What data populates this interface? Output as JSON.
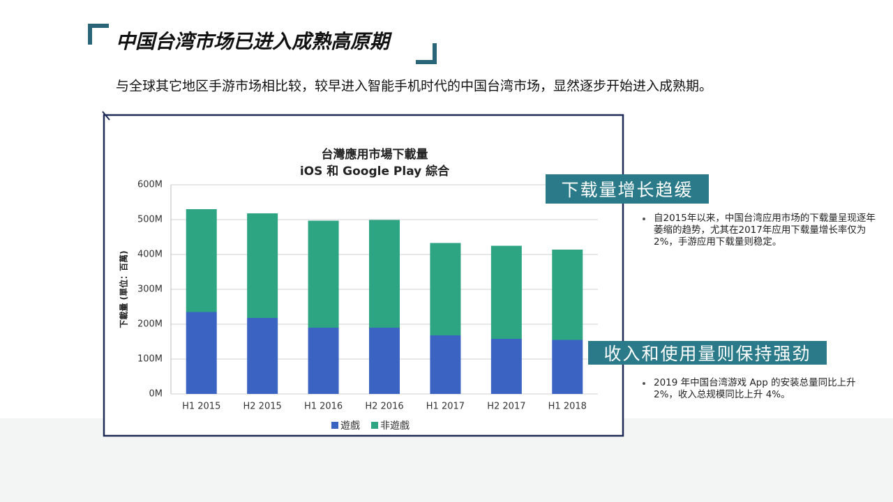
{
  "header": {
    "title": "中国台湾市场已进入成熟高原期",
    "subtitle": "与全球其它地区手游市场相比较，较早进入智能手机时代的中国台湾市场，显然逐步开始进入成熟期。"
  },
  "chart_data": {
    "type": "stacked_bar",
    "title": "台灣應用市場下載量",
    "subtitle": "iOS 和 Google Play 綜合",
    "y_label": "下載量 (單位：百萬)",
    "categories": [
      "H1 2015",
      "H2 2015",
      "H1 2016",
      "H2 2016",
      "H1 2017",
      "H2 2017",
      "H1 2018"
    ],
    "series": [
      {
        "name": "遊戲",
        "color": "#3a63c2",
        "values": [
          235,
          218,
          190,
          190,
          168,
          158,
          155
        ]
      },
      {
        "name": "非遊戲",
        "color": "#2ea582",
        "values": [
          295,
          300,
          307,
          309,
          265,
          267,
          259
        ]
      }
    ],
    "ylim": [
      0,
      600
    ],
    "yticks": [
      {
        "value": 0,
        "label": "0M"
      },
      {
        "value": 100,
        "label": "100M"
      },
      {
        "value": 200,
        "label": "200M"
      },
      {
        "value": 300,
        "label": "300M"
      },
      {
        "value": 400,
        "label": "400M"
      },
      {
        "value": 500,
        "label": "500M"
      },
      {
        "value": 600,
        "label": "600M"
      }
    ],
    "grid": true
  },
  "panels": [
    {
      "heading": "下载量增长趋缓",
      "text": "自2015年以来，中国台湾应用市场的下载量呈现逐年萎缩的趋势，尤其在2017年应用下载量增长率仅为2%，手游应用下载量则稳定。"
    },
    {
      "heading": "收入和使用量则保持强劲",
      "text": "2019 年中国台湾游戏 App 的安装总量同比上升 2%，收入总规模同比上升 4%。"
    }
  ]
}
